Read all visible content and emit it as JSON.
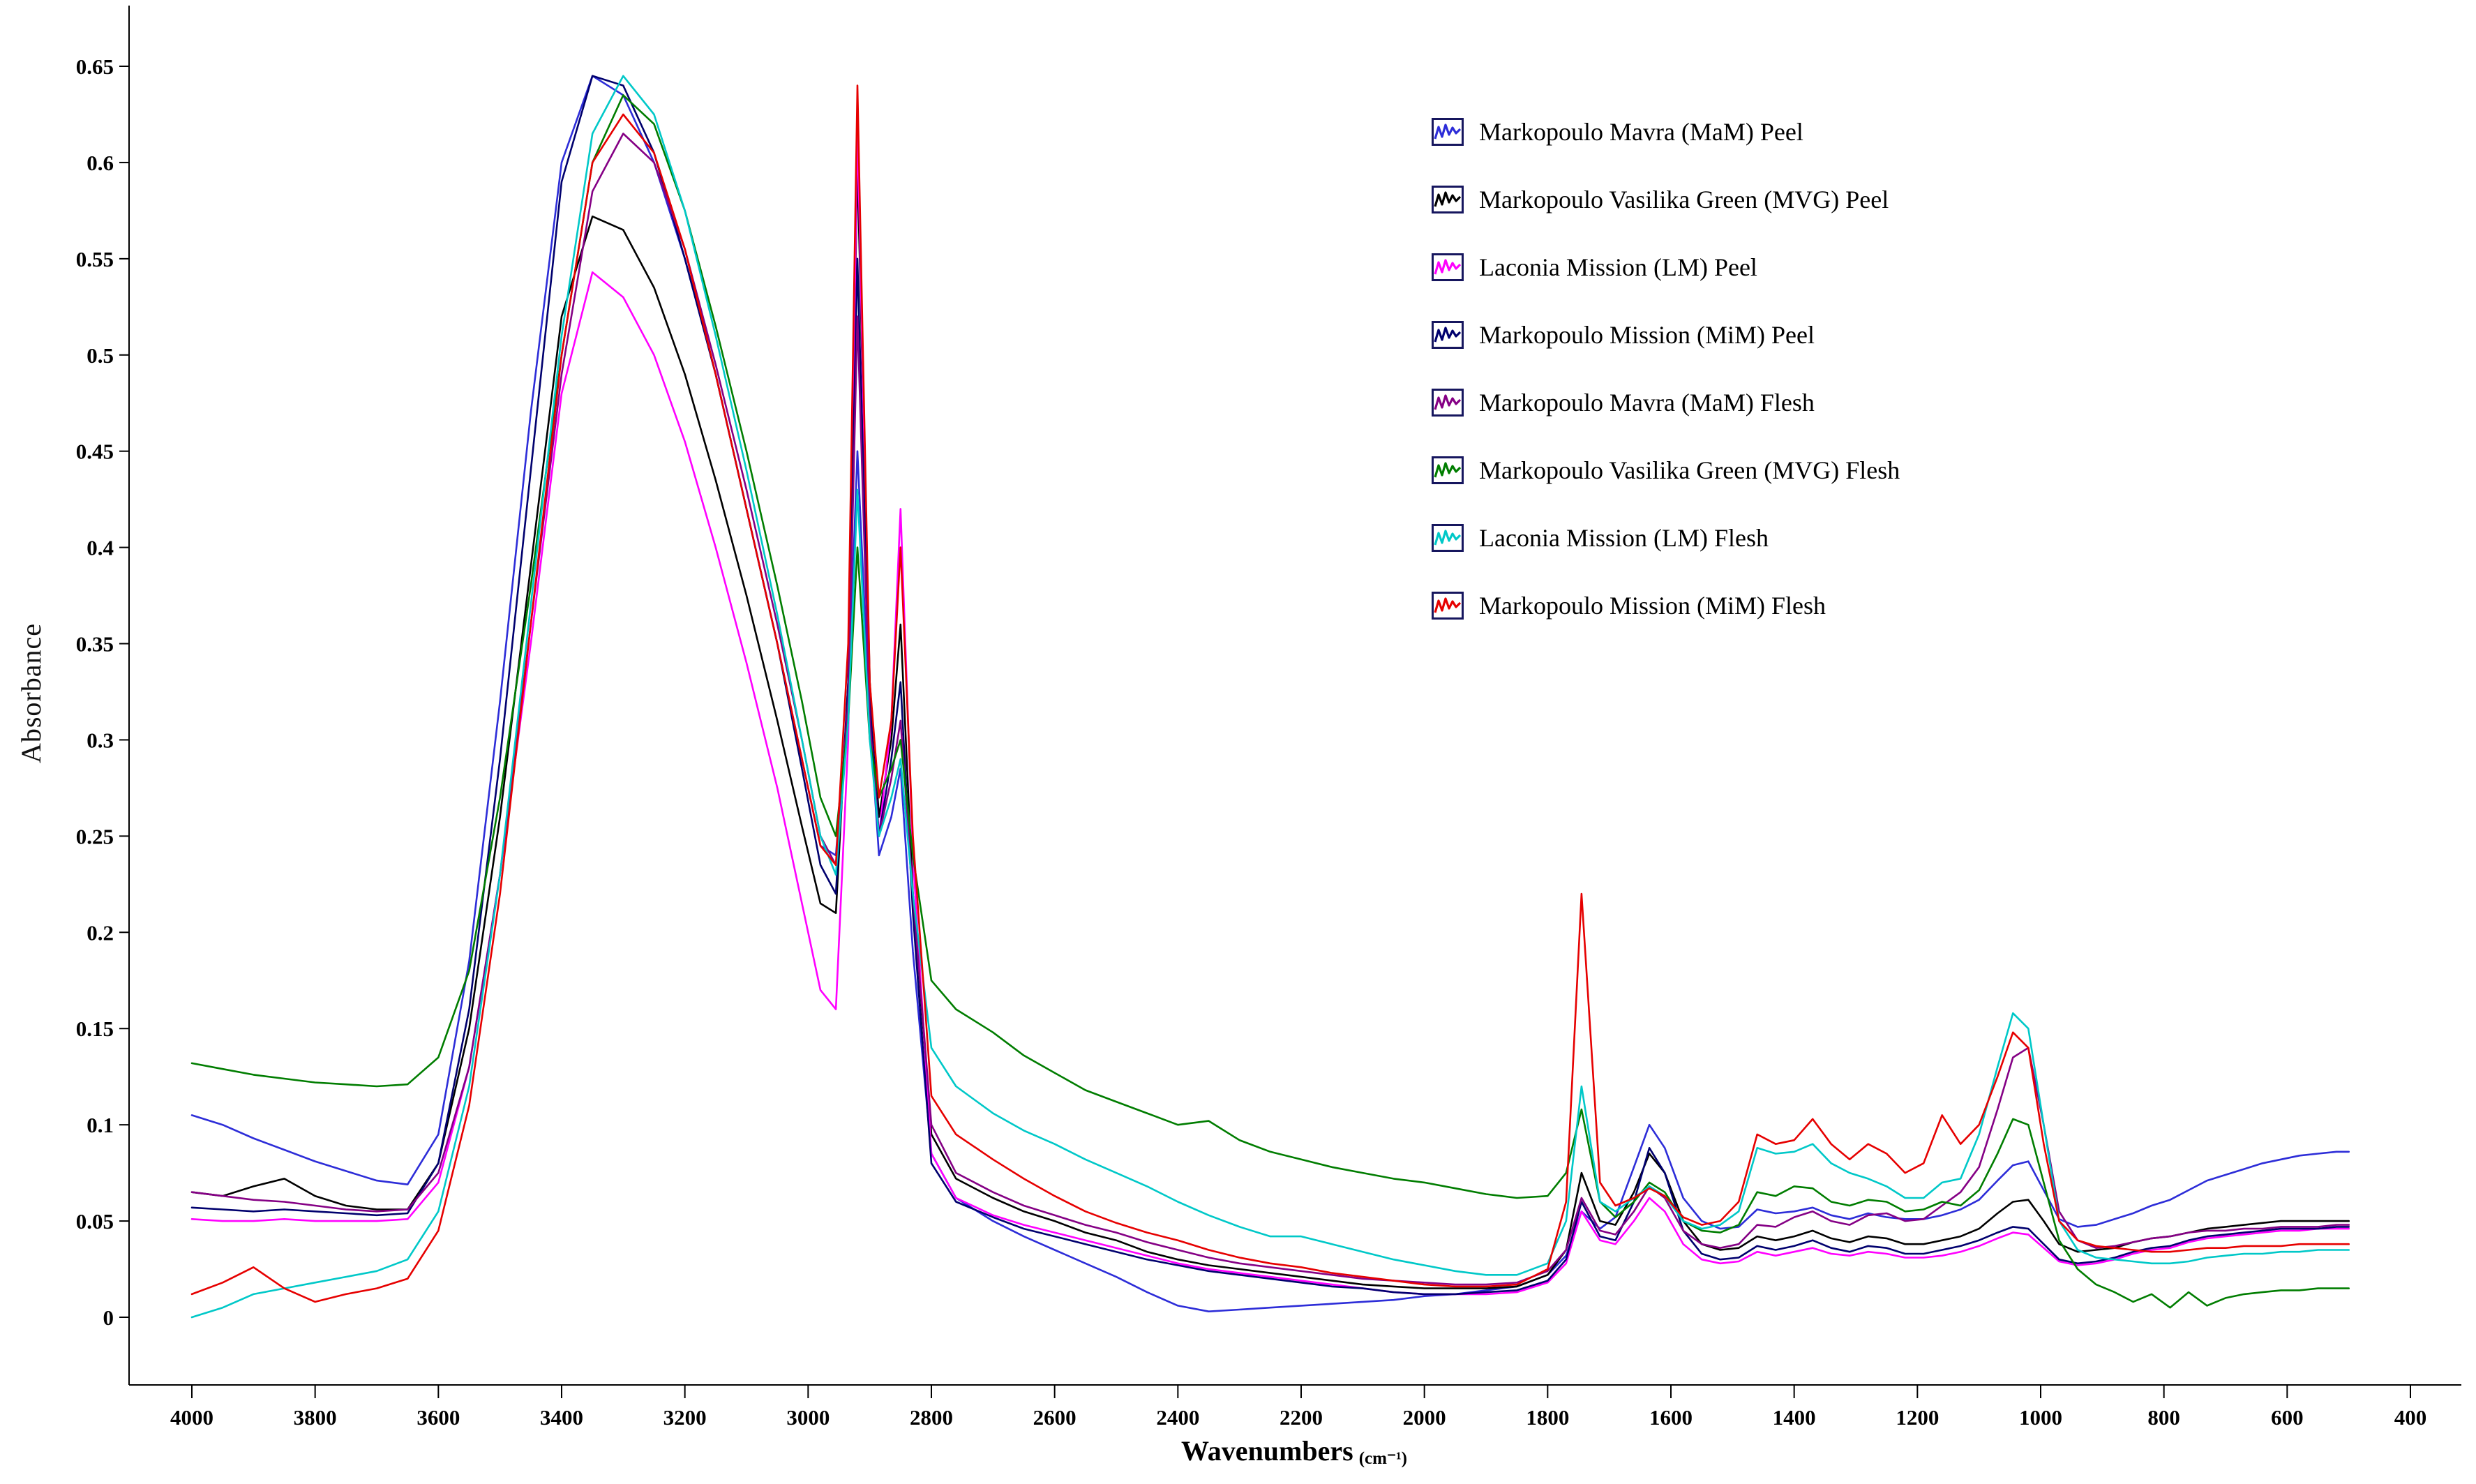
{
  "chart_data": {
    "type": "line",
    "title": "",
    "xlabel_text": "Wavenumbers",
    "xlabel_unit": "(cm⁻¹)",
    "ylabel": "Absorbance",
    "x_axis_reversed": true,
    "x_range": [
      4000,
      400
    ],
    "y_range": [
      0,
      0.65
    ],
    "grid": false,
    "legend_position": "top-right",
    "x_ticks": [
      4000,
      3800,
      3600,
      3400,
      3200,
      3000,
      2800,
      2600,
      2400,
      2200,
      2000,
      1800,
      1600,
      1400,
      1200,
      1000,
      800,
      600,
      400
    ],
    "y_ticks": [
      {
        "v": 0,
        "label": "0"
      },
      {
        "v": 0.05,
        "label": "0.05"
      },
      {
        "v": 0.1,
        "label": "0.1"
      },
      {
        "v": 0.15,
        "label": "0.15"
      },
      {
        "v": 0.2,
        "label": "0.2"
      },
      {
        "v": 0.25,
        "label": "0.25"
      },
      {
        "v": 0.3,
        "label": "0.3"
      },
      {
        "v": 0.35,
        "label": "0.35"
      },
      {
        "v": 0.4,
        "label": "0.4"
      },
      {
        "v": 0.45,
        "label": "0.45"
      },
      {
        "v": 0.5,
        "label": "0.5"
      },
      {
        "v": 0.55,
        "label": "0.55"
      },
      {
        "v": 0.6,
        "label": "0.6"
      },
      {
        "v": 0.65,
        "label": "0.65"
      }
    ],
    "x": [
      4000,
      3950,
      3900,
      3850,
      3800,
      3750,
      3700,
      3650,
      3600,
      3550,
      3500,
      3450,
      3400,
      3350,
      3300,
      3250,
      3200,
      3150,
      3100,
      3050,
      3010,
      2980,
      2955,
      2935,
      2920,
      2900,
      2885,
      2865,
      2850,
      2830,
      2800,
      2760,
      2700,
      2650,
      2600,
      2550,
      2500,
      2450,
      2400,
      2350,
      2300,
      2250,
      2200,
      2150,
      2100,
      2050,
      2000,
      1950,
      1900,
      1850,
      1800,
      1770,
      1745,
      1715,
      1690,
      1660,
      1635,
      1610,
      1580,
      1550,
      1520,
      1490,
      1460,
      1430,
      1400,
      1370,
      1340,
      1310,
      1280,
      1250,
      1220,
      1190,
      1160,
      1130,
      1100,
      1070,
      1045,
      1020,
      995,
      970,
      940,
      910,
      880,
      850,
      820,
      790,
      760,
      730,
      700,
      670,
      640,
      610,
      580,
      550,
      520,
      500
    ],
    "series": [
      {
        "name": "Markopoulo Mavra (MaM) Peel",
        "color": "#2d2dd8",
        "y": [
          0.105,
          0.1,
          0.093,
          0.087,
          0.081,
          0.076,
          0.071,
          0.069,
          0.095,
          0.185,
          0.32,
          0.47,
          0.6,
          0.645,
          0.635,
          0.6,
          0.55,
          0.49,
          0.42,
          0.35,
          0.29,
          0.245,
          0.24,
          0.32,
          0.45,
          0.31,
          0.24,
          0.26,
          0.285,
          0.19,
          0.085,
          0.062,
          0.05,
          0.042,
          0.035,
          0.028,
          0.021,
          0.013,
          0.006,
          0.003,
          0.004,
          0.005,
          0.006,
          0.007,
          0.008,
          0.009,
          0.011,
          0.012,
          0.014,
          0.016,
          0.022,
          0.032,
          0.055,
          0.046,
          0.052,
          0.078,
          0.1,
          0.088,
          0.062,
          0.05,
          0.046,
          0.047,
          0.056,
          0.054,
          0.055,
          0.057,
          0.053,
          0.051,
          0.054,
          0.052,
          0.051,
          0.051,
          0.053,
          0.056,
          0.061,
          0.071,
          0.079,
          0.081,
          0.066,
          0.051,
          0.047,
          0.048,
          0.051,
          0.054,
          0.058,
          0.061,
          0.066,
          0.071,
          0.074,
          0.077,
          0.08,
          0.082,
          0.084,
          0.085,
          0.086,
          0.086
        ]
      },
      {
        "name": "Markopoulo Vasilika Green (MVG) Peel",
        "color": "#000000",
        "y": [
          0.065,
          0.063,
          0.068,
          0.072,
          0.063,
          0.058,
          0.056,
          0.056,
          0.08,
          0.15,
          0.26,
          0.39,
          0.52,
          0.572,
          0.565,
          0.535,
          0.49,
          0.435,
          0.375,
          0.31,
          0.255,
          0.215,
          0.21,
          0.33,
          0.6,
          0.33,
          0.26,
          0.3,
          0.36,
          0.22,
          0.095,
          0.072,
          0.062,
          0.055,
          0.05,
          0.044,
          0.04,
          0.034,
          0.03,
          0.027,
          0.025,
          0.023,
          0.021,
          0.019,
          0.017,
          0.016,
          0.015,
          0.015,
          0.015,
          0.016,
          0.022,
          0.035,
          0.075,
          0.05,
          0.048,
          0.065,
          0.085,
          0.075,
          0.05,
          0.038,
          0.035,
          0.036,
          0.042,
          0.04,
          0.042,
          0.045,
          0.041,
          0.039,
          0.042,
          0.041,
          0.038,
          0.038,
          0.04,
          0.042,
          0.046,
          0.054,
          0.06,
          0.061,
          0.05,
          0.038,
          0.034,
          0.035,
          0.036,
          0.039,
          0.041,
          0.042,
          0.044,
          0.046,
          0.047,
          0.048,
          0.049,
          0.05,
          0.05,
          0.05,
          0.05,
          0.05
        ]
      },
      {
        "name": "Laconia Mission (LM) Peel",
        "color": "#ff00ff",
        "y": [
          0.051,
          0.05,
          0.05,
          0.051,
          0.05,
          0.05,
          0.05,
          0.051,
          0.07,
          0.13,
          0.23,
          0.35,
          0.48,
          0.543,
          0.53,
          0.5,
          0.455,
          0.4,
          0.34,
          0.275,
          0.215,
          0.17,
          0.16,
          0.3,
          0.62,
          0.32,
          0.25,
          0.31,
          0.42,
          0.24,
          0.085,
          0.062,
          0.053,
          0.048,
          0.044,
          0.04,
          0.036,
          0.032,
          0.028,
          0.025,
          0.023,
          0.021,
          0.019,
          0.017,
          0.015,
          0.013,
          0.012,
          0.012,
          0.012,
          0.013,
          0.018,
          0.028,
          0.055,
          0.04,
          0.038,
          0.05,
          0.062,
          0.055,
          0.038,
          0.03,
          0.028,
          0.029,
          0.034,
          0.032,
          0.034,
          0.036,
          0.033,
          0.032,
          0.034,
          0.033,
          0.031,
          0.031,
          0.032,
          0.034,
          0.037,
          0.041,
          0.044,
          0.043,
          0.036,
          0.029,
          0.027,
          0.028,
          0.03,
          0.033,
          0.035,
          0.036,
          0.039,
          0.041,
          0.042,
          0.043,
          0.044,
          0.045,
          0.045,
          0.046,
          0.046,
          0.046
        ]
      },
      {
        "name": "Markopoulo Mission (MiM) Peel",
        "color": "#00006e",
        "y": [
          0.057,
          0.056,
          0.055,
          0.056,
          0.055,
          0.054,
          0.053,
          0.054,
          0.08,
          0.16,
          0.29,
          0.44,
          0.59,
          0.645,
          0.64,
          0.605,
          0.55,
          0.49,
          0.42,
          0.35,
          0.285,
          0.235,
          0.22,
          0.33,
          0.55,
          0.32,
          0.25,
          0.29,
          0.33,
          0.21,
          0.08,
          0.06,
          0.052,
          0.046,
          0.042,
          0.038,
          0.034,
          0.03,
          0.027,
          0.024,
          0.022,
          0.02,
          0.018,
          0.016,
          0.015,
          0.013,
          0.012,
          0.012,
          0.013,
          0.014,
          0.019,
          0.03,
          0.06,
          0.042,
          0.04,
          0.06,
          0.088,
          0.075,
          0.045,
          0.033,
          0.03,
          0.031,
          0.037,
          0.035,
          0.037,
          0.04,
          0.036,
          0.034,
          0.037,
          0.036,
          0.033,
          0.033,
          0.035,
          0.037,
          0.04,
          0.044,
          0.047,
          0.046,
          0.038,
          0.03,
          0.028,
          0.029,
          0.031,
          0.034,
          0.036,
          0.037,
          0.04,
          0.042,
          0.043,
          0.044,
          0.045,
          0.046,
          0.046,
          0.046,
          0.047,
          0.047
        ]
      },
      {
        "name": "Markopoulo Mavra (MaM) Flesh",
        "color": "#850085",
        "y": [
          0.065,
          0.063,
          0.061,
          0.06,
          0.058,
          0.056,
          0.055,
          0.056,
          0.075,
          0.13,
          0.23,
          0.36,
          0.49,
          0.585,
          0.615,
          0.6,
          0.555,
          0.495,
          0.43,
          0.36,
          0.3,
          0.25,
          0.235,
          0.32,
          0.52,
          0.31,
          0.25,
          0.28,
          0.31,
          0.22,
          0.1,
          0.075,
          0.065,
          0.058,
          0.053,
          0.048,
          0.044,
          0.039,
          0.035,
          0.031,
          0.028,
          0.026,
          0.024,
          0.022,
          0.02,
          0.019,
          0.018,
          0.017,
          0.017,
          0.018,
          0.024,
          0.035,
          0.062,
          0.045,
          0.043,
          0.055,
          0.068,
          0.062,
          0.045,
          0.038,
          0.036,
          0.038,
          0.048,
          0.047,
          0.052,
          0.055,
          0.05,
          0.048,
          0.053,
          0.054,
          0.05,
          0.051,
          0.058,
          0.065,
          0.078,
          0.108,
          0.135,
          0.14,
          0.1,
          0.055,
          0.04,
          0.036,
          0.037,
          0.039,
          0.041,
          0.042,
          0.044,
          0.045,
          0.045,
          0.046,
          0.046,
          0.047,
          0.047,
          0.047,
          0.048,
          0.048
        ]
      },
      {
        "name": "Markopoulo Vasilika Green (MVG) Flesh",
        "color": "#007d00",
        "y": [
          0.132,
          0.129,
          0.126,
          0.124,
          0.122,
          0.121,
          0.12,
          0.121,
          0.135,
          0.18,
          0.27,
          0.38,
          0.5,
          0.6,
          0.635,
          0.62,
          0.575,
          0.515,
          0.45,
          0.38,
          0.32,
          0.27,
          0.25,
          0.31,
          0.4,
          0.3,
          0.27,
          0.285,
          0.3,
          0.24,
          0.175,
          0.16,
          0.148,
          0.136,
          0.127,
          0.118,
          0.112,
          0.106,
          0.1,
          0.102,
          0.092,
          0.086,
          0.082,
          0.078,
          0.075,
          0.072,
          0.07,
          0.067,
          0.064,
          0.062,
          0.063,
          0.075,
          0.108,
          0.06,
          0.052,
          0.06,
          0.07,
          0.065,
          0.05,
          0.045,
          0.044,
          0.048,
          0.065,
          0.063,
          0.068,
          0.067,
          0.06,
          0.058,
          0.061,
          0.06,
          0.055,
          0.056,
          0.06,
          0.058,
          0.066,
          0.085,
          0.103,
          0.1,
          0.07,
          0.04,
          0.025,
          0.017,
          0.013,
          0.008,
          0.012,
          0.005,
          0.013,
          0.006,
          0.01,
          0.012,
          0.013,
          0.014,
          0.014,
          0.015,
          0.015,
          0.015
        ]
      },
      {
        "name": "Laconia Mission (LM) Flesh",
        "color": "#00c8c8",
        "y": [
          0.0,
          0.005,
          0.012,
          0.015,
          0.018,
          0.021,
          0.024,
          0.03,
          0.055,
          0.12,
          0.23,
          0.37,
          0.51,
          0.615,
          0.645,
          0.625,
          0.575,
          0.51,
          0.44,
          0.365,
          0.3,
          0.25,
          0.23,
          0.31,
          0.43,
          0.3,
          0.25,
          0.27,
          0.29,
          0.22,
          0.14,
          0.12,
          0.106,
          0.097,
          0.09,
          0.082,
          0.075,
          0.068,
          0.06,
          0.053,
          0.047,
          0.042,
          0.042,
          0.038,
          0.034,
          0.03,
          0.027,
          0.024,
          0.022,
          0.022,
          0.028,
          0.05,
          0.12,
          0.06,
          0.055,
          0.062,
          0.068,
          0.063,
          0.05,
          0.046,
          0.048,
          0.055,
          0.088,
          0.085,
          0.086,
          0.09,
          0.08,
          0.075,
          0.072,
          0.068,
          0.062,
          0.062,
          0.07,
          0.072,
          0.095,
          0.13,
          0.158,
          0.15,
          0.1,
          0.05,
          0.035,
          0.031,
          0.03,
          0.029,
          0.028,
          0.028,
          0.029,
          0.031,
          0.032,
          0.033,
          0.033,
          0.034,
          0.034,
          0.035,
          0.035,
          0.035
        ]
      },
      {
        "name": "Markopoulo Mission (MiM) Flesh",
        "color": "#e60000",
        "y": [
          0.012,
          0.018,
          0.026,
          0.015,
          0.008,
          0.012,
          0.015,
          0.02,
          0.045,
          0.11,
          0.22,
          0.36,
          0.5,
          0.6,
          0.625,
          0.605,
          0.555,
          0.49,
          0.42,
          0.35,
          0.29,
          0.245,
          0.235,
          0.35,
          0.64,
          0.33,
          0.27,
          0.31,
          0.4,
          0.25,
          0.115,
          0.095,
          0.082,
          0.072,
          0.063,
          0.055,
          0.049,
          0.044,
          0.04,
          0.035,
          0.031,
          0.028,
          0.026,
          0.023,
          0.021,
          0.019,
          0.017,
          0.016,
          0.016,
          0.017,
          0.025,
          0.06,
          0.22,
          0.07,
          0.058,
          0.062,
          0.067,
          0.063,
          0.052,
          0.048,
          0.05,
          0.06,
          0.095,
          0.09,
          0.092,
          0.103,
          0.09,
          0.082,
          0.09,
          0.085,
          0.075,
          0.08,
          0.105,
          0.09,
          0.1,
          0.125,
          0.148,
          0.14,
          0.09,
          0.05,
          0.04,
          0.037,
          0.036,
          0.035,
          0.034,
          0.034,
          0.035,
          0.036,
          0.036,
          0.037,
          0.037,
          0.037,
          0.038,
          0.038,
          0.038,
          0.038
        ]
      }
    ]
  }
}
